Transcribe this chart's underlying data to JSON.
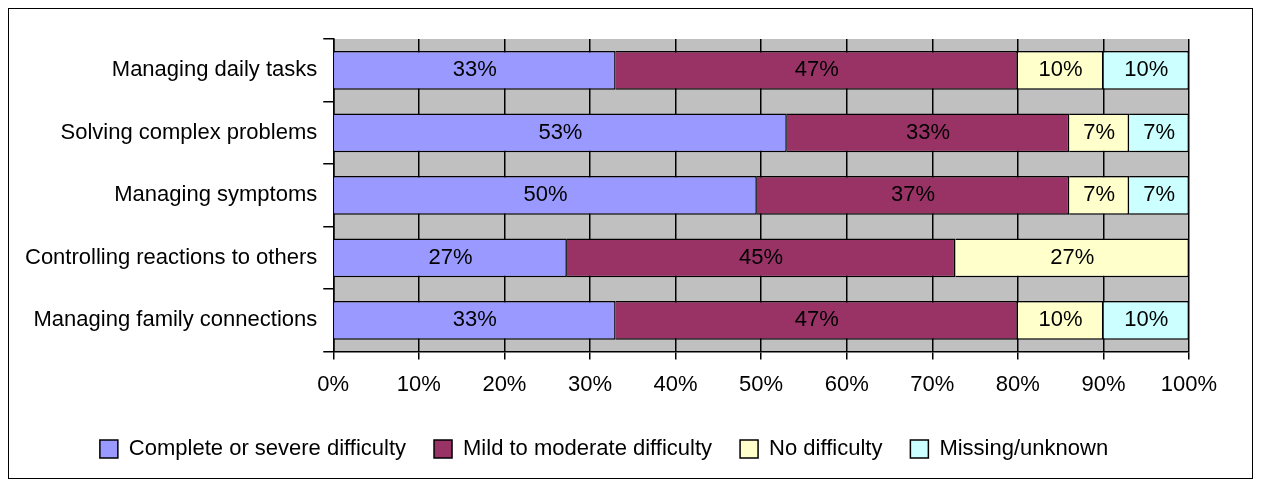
{
  "chart_data": {
    "type": "bar",
    "orientation": "horizontal",
    "stacked": true,
    "categories": [
      "Managing daily tasks",
      "Solving complex problems",
      "Managing symptoms",
      "Controlling reactions to others",
      "Managing family connections"
    ],
    "series": [
      {
        "name": "Complete or severe difficulty",
        "color": "#9999ff",
        "values": [
          33,
          53,
          49.5,
          27.3,
          33
        ],
        "value_labels": [
          "33%",
          "53%",
          "50%",
          "27%",
          "33%"
        ]
      },
      {
        "name": "Mild to moderate difficulty",
        "color": "#993366",
        "values": [
          47,
          33,
          36.5,
          45.4,
          47
        ],
        "value_labels": [
          "47%",
          "33%",
          "37%",
          "45%",
          "47%"
        ]
      },
      {
        "name": "No difficulty",
        "color": "#ffffcc",
        "values": [
          10,
          7,
          7,
          27.3,
          10
        ],
        "value_labels": [
          "10%",
          "7%",
          "7%",
          "27%",
          "10%"
        ]
      },
      {
        "name": "Missing/unknown",
        "color": "#ccffff",
        "values": [
          10,
          7,
          7,
          null,
          10
        ],
        "value_labels": [
          "10%",
          "7%",
          "7%",
          null,
          "10%"
        ]
      }
    ],
    "xlim": [
      0,
      100
    ],
    "xticks": [
      {
        "value": 0,
        "label": "0%"
      },
      {
        "value": 10,
        "label": "10%"
      },
      {
        "value": 20,
        "label": "20%"
      },
      {
        "value": 30,
        "label": "30%"
      },
      {
        "value": 40,
        "label": "40%"
      },
      {
        "value": 50,
        "label": "50%"
      },
      {
        "value": 60,
        "label": "60%"
      },
      {
        "value": 70,
        "label": "70%"
      },
      {
        "value": 80,
        "label": "80%"
      },
      {
        "value": 90,
        "label": "90%"
      },
      {
        "value": 100,
        "label": "100%"
      }
    ],
    "grid": "x",
    "legend": "bottom"
  }
}
